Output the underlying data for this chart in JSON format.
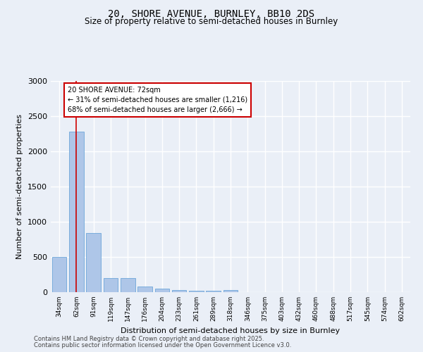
{
  "title1": "20, SHORE AVENUE, BURNLEY, BB10 2DS",
  "title2": "Size of property relative to semi-detached houses in Burnley",
  "xlabel": "Distribution of semi-detached houses by size in Burnley",
  "ylabel": "Number of semi-detached properties",
  "categories": [
    "34sqm",
    "62sqm",
    "91sqm",
    "119sqm",
    "147sqm",
    "176sqm",
    "204sqm",
    "233sqm",
    "261sqm",
    "289sqm",
    "318sqm",
    "346sqm",
    "375sqm",
    "403sqm",
    "432sqm",
    "460sqm",
    "488sqm",
    "517sqm",
    "545sqm",
    "574sqm",
    "602sqm"
  ],
  "values": [
    500,
    2280,
    840,
    200,
    200,
    80,
    55,
    35,
    25,
    20,
    30,
    0,
    0,
    0,
    0,
    0,
    0,
    0,
    0,
    0,
    0
  ],
  "bar_color": "#aec6e8",
  "bar_edge_color": "#5a9bd4",
  "vline_x": 1,
  "vline_color": "#cc0000",
  "annotation_title": "20 SHORE AVENUE: 72sqm",
  "annotation_line1": "← 31% of semi-detached houses are smaller (1,216)",
  "annotation_line2": "68% of semi-detached houses are larger (2,666) →",
  "annotation_box_color": "#cc0000",
  "ylim": [
    0,
    3000
  ],
  "yticks": [
    0,
    500,
    1000,
    1500,
    2000,
    2500,
    3000
  ],
  "footer1": "Contains HM Land Registry data © Crown copyright and database right 2025.",
  "footer2": "Contains public sector information licensed under the Open Government Licence v3.0.",
  "bg_color": "#eaeff7",
  "plot_bg_color": "#eaeff7",
  "grid_color": "#ffffff",
  "title_fontsize": 10,
  "subtitle_fontsize": 8.5
}
